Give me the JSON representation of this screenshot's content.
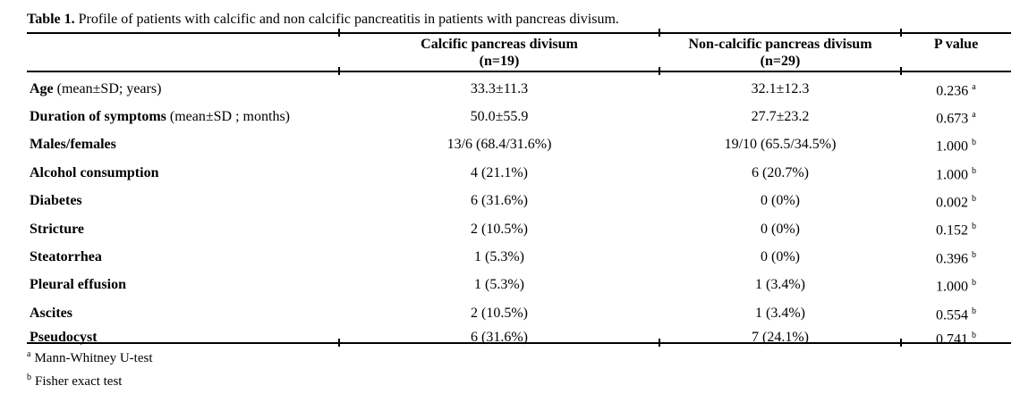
{
  "title": {
    "label": "Table 1.",
    "text": " Profile of patients with calcific and non calcific pancreatitis in patients with pancreas divisum."
  },
  "table": {
    "columns": [
      {
        "header": "",
        "subheader": ""
      },
      {
        "header": "Calcific pancreas divisum",
        "subheader": "(n=19)"
      },
      {
        "header": "Non-calcific pancreas divisum",
        "subheader": "(n=29)"
      },
      {
        "header": "P value",
        "subheader": ""
      }
    ],
    "rows": [
      {
        "label_bold": "Age",
        "label_rest": " (mean±SD; years)",
        "calcific": "33.3±11.3",
        "non_calcific": "32.1±12.3",
        "p": "0.236",
        "p_sup": "a"
      },
      {
        "label_bold": "Duration of symptoms",
        "label_rest": " (mean±SD ; months)",
        "calcific": "50.0±55.9",
        "non_calcific": "27.7±23.2",
        "p": "0.673",
        "p_sup": "a"
      },
      {
        "label_bold": "Males/females",
        "label_rest": "",
        "calcific": "13/6 (68.4/31.6%)",
        "non_calcific": "19/10 (65.5/34.5%)",
        "p": "1.000",
        "p_sup": "b"
      },
      {
        "label_bold": "Alcohol consumption",
        "label_rest": "",
        "calcific": "4 (21.1%)",
        "non_calcific": "6 (20.7%)",
        "p": "1.000",
        "p_sup": "b"
      },
      {
        "label_bold": "Diabetes",
        "label_rest": "",
        "calcific": "6 (31.6%)",
        "non_calcific": "0 (0%)",
        "p": "0.002",
        "p_sup": "b"
      },
      {
        "label_bold": "Stricture",
        "label_rest": "",
        "calcific": "2 (10.5%)",
        "non_calcific": "0 (0%)",
        "p": "0.152",
        "p_sup": "b"
      },
      {
        "label_bold": "Steatorrhea",
        "label_rest": "",
        "calcific": "1 (5.3%)",
        "non_calcific": "0 (0%)",
        "p": "0.396",
        "p_sup": "b"
      },
      {
        "label_bold": "Pleural effusion",
        "label_rest": "",
        "calcific": "1 (5.3%)",
        "non_calcific": "1 (3.4%)",
        "p": "1.000",
        "p_sup": "b"
      },
      {
        "label_bold": "Ascites",
        "label_rest": "",
        "calcific": "2 (10.5%)",
        "non_calcific": "1 (3.4%)",
        "p": "0.554",
        "p_sup": "b"
      },
      {
        "label_bold": "Pseudocyst",
        "label_rest": "",
        "calcific": "6 (31.6%)",
        "non_calcific": "7 (24.1%)",
        "p": "0.741",
        "p_sup": "b"
      }
    ],
    "footnotes": [
      {
        "marker": "a",
        "text": "Mann-Whitney U-test"
      },
      {
        "marker": "b",
        "text": "Fisher exact test"
      }
    ]
  },
  "colors": {
    "text": "#000000",
    "background": "#ffffff",
    "rule": "#000000"
  }
}
